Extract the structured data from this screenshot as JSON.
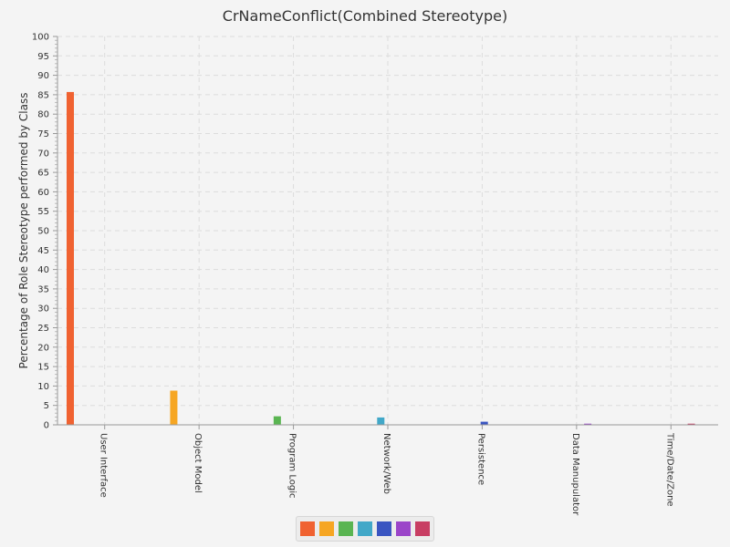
{
  "chart_data": {
    "type": "bar",
    "title": "CrNameConflict(Combined Stereotype)",
    "ylabel": "Percentage of Role Stereotype performed by Class",
    "xlabel": "",
    "categories": [
      "User Interface",
      "Object Model",
      "Program Logic",
      "Network/Web",
      "Persistence",
      "Data Manupulator",
      "Time/Date/Zone"
    ],
    "series": [
      {
        "values": [
          85.7,
          0,
          0,
          0,
          0,
          0,
          0
        ]
      },
      {
        "values": [
          0,
          8.8,
          0,
          0,
          0,
          0,
          0
        ]
      },
      {
        "values": [
          0,
          0,
          2.2,
          0,
          0,
          0,
          0
        ]
      },
      {
        "values": [
          0,
          0,
          0,
          1.9,
          0,
          0,
          0
        ]
      },
      {
        "values": [
          0,
          0,
          0,
          0,
          0.8,
          0,
          0
        ]
      },
      {
        "values": [
          0,
          0,
          0,
          0,
          0,
          0.3,
          0
        ]
      },
      {
        "values": [
          0,
          0,
          0,
          0,
          0,
          0,
          0.3
        ]
      }
    ],
    "ylim": [
      0,
      100
    ],
    "ytick_step": 5,
    "grid": true,
    "legend": "bottom-center",
    "colors": [
      "#f06231",
      "#f6a623",
      "#5ab552",
      "#42a8c8",
      "#3a55c1",
      "#9b45c9",
      "#c83e63"
    ]
  }
}
